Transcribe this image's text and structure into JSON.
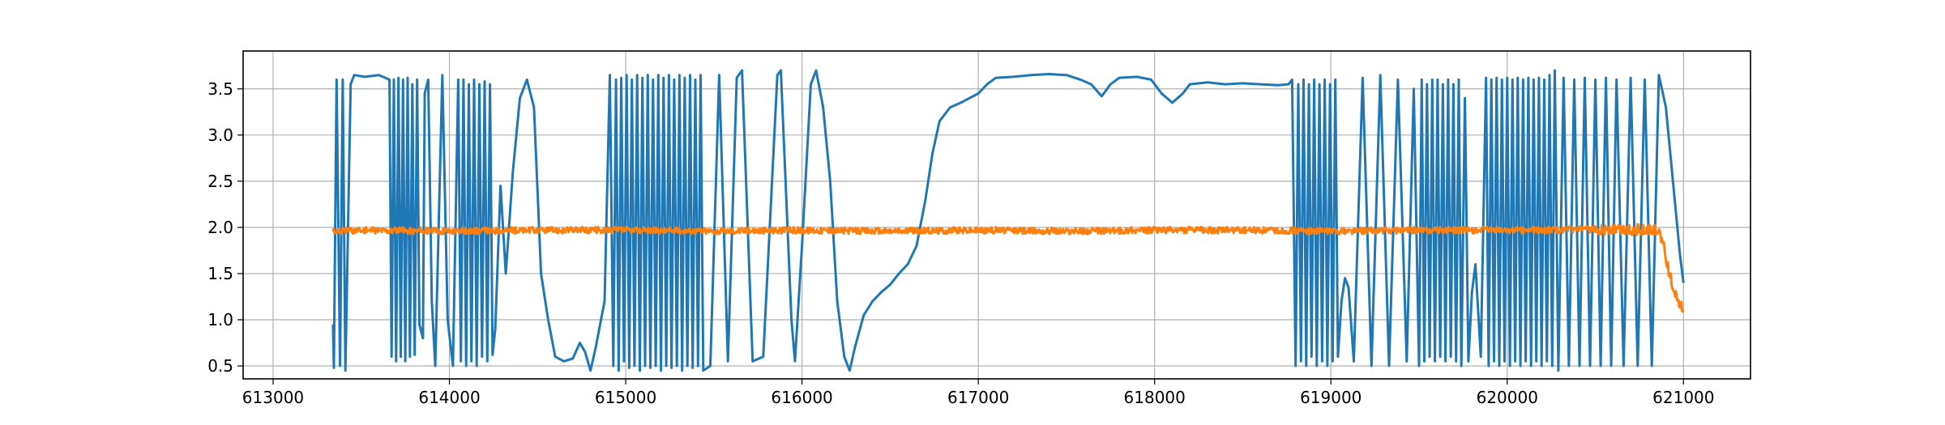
{
  "chart_data": {
    "type": "line",
    "title": "",
    "xlabel": "",
    "ylabel": "",
    "xlim": [
      612830,
      621380
    ],
    "ylim": [
      0.36,
      3.91
    ],
    "grid": true,
    "legend": "none",
    "x_ticks": [
      613000,
      614000,
      615000,
      616000,
      617000,
      618000,
      619000,
      620000,
      621000
    ],
    "x_tick_labels": [
      "613000",
      "614000",
      "615000",
      "616000",
      "617000",
      "618000",
      "619000",
      "620000",
      "621000"
    ],
    "y_ticks": [
      0.5,
      1.0,
      1.5,
      2.0,
      2.5,
      3.0,
      3.5
    ],
    "y_tick_labels": [
      "0.5",
      "1.0",
      "1.5",
      "2.0",
      "2.5",
      "3.0",
      "3.5"
    ],
    "colors": {
      "series_1": "#1f77b4",
      "series_2": "#ff7f0e",
      "grid": "#b0b0b0",
      "axes": "#000000"
    },
    "series": [
      {
        "color": "#1f77b4",
        "points": [
          [
            613340,
            0.95
          ],
          [
            613345,
            0.48
          ],
          [
            613360,
            3.6
          ],
          [
            613380,
            0.5
          ],
          [
            613395,
            3.6
          ],
          [
            613410,
            0.45
          ],
          [
            613440,
            3.55
          ],
          [
            613460,
            3.65
          ],
          [
            613520,
            3.63
          ],
          [
            613600,
            3.65
          ],
          [
            613660,
            3.6
          ],
          [
            613672,
            0.6
          ],
          [
            613685,
            3.6
          ],
          [
            613698,
            0.55
          ],
          [
            613711,
            3.62
          ],
          [
            613724,
            0.6
          ],
          [
            613737,
            3.6
          ],
          [
            613750,
            0.55
          ],
          [
            613763,
            3.62
          ],
          [
            613776,
            0.6
          ],
          [
            613790,
            3.55
          ],
          [
            613803,
            0.62
          ],
          [
            613817,
            3.6
          ],
          [
            613830,
            0.95
          ],
          [
            613850,
            0.8
          ],
          [
            613860,
            3.45
          ],
          [
            613880,
            3.6
          ],
          [
            613900,
            1.2
          ],
          [
            613920,
            0.5
          ],
          [
            613960,
            3.65
          ],
          [
            613990,
            1.0
          ],
          [
            614020,
            0.5
          ],
          [
            614050,
            3.6
          ],
          [
            614065,
            0.55
          ],
          [
            614080,
            3.6
          ],
          [
            614095,
            0.5
          ],
          [
            614110,
            3.55
          ],
          [
            614125,
            0.55
          ],
          [
            614140,
            3.6
          ],
          [
            614155,
            0.5
          ],
          [
            614170,
            3.55
          ],
          [
            614185,
            0.6
          ],
          [
            614200,
            3.58
          ],
          [
            614215,
            0.55
          ],
          [
            614230,
            3.55
          ],
          [
            614245,
            0.62
          ],
          [
            614260,
            0.9
          ],
          [
            614290,
            2.45
          ],
          [
            614320,
            1.5
          ],
          [
            614360,
            2.6
          ],
          [
            614400,
            3.4
          ],
          [
            614440,
            3.6
          ],
          [
            614480,
            3.3
          ],
          [
            614520,
            1.5
          ],
          [
            614560,
            1.0
          ],
          [
            614600,
            0.6
          ],
          [
            614650,
            0.55
          ],
          [
            614700,
            0.58
          ],
          [
            614740,
            0.75
          ],
          [
            614770,
            0.65
          ],
          [
            614800,
            0.45
          ],
          [
            614830,
            0.7
          ],
          [
            614860,
            1.0
          ],
          [
            614880,
            1.2
          ],
          [
            614910,
            3.65
          ],
          [
            614930,
            0.5
          ],
          [
            614945,
            3.6
          ],
          [
            614960,
            0.45
          ],
          [
            614975,
            3.62
          ],
          [
            614990,
            0.55
          ],
          [
            615005,
            3.65
          ],
          [
            615020,
            0.48
          ],
          [
            615035,
            3.6
          ],
          [
            615050,
            0.5
          ],
          [
            615065,
            3.65
          ],
          [
            615080,
            0.45
          ],
          [
            615095,
            3.62
          ],
          [
            615110,
            0.5
          ],
          [
            615125,
            3.65
          ],
          [
            615140,
            0.48
          ],
          [
            615155,
            3.6
          ],
          [
            615170,
            0.5
          ],
          [
            615185,
            3.65
          ],
          [
            615200,
            0.45
          ],
          [
            615215,
            3.62
          ],
          [
            615230,
            0.5
          ],
          [
            615245,
            3.65
          ],
          [
            615260,
            0.48
          ],
          [
            615275,
            3.6
          ],
          [
            615290,
            0.5
          ],
          [
            615305,
            3.65
          ],
          [
            615320,
            0.45
          ],
          [
            615335,
            3.62
          ],
          [
            615350,
            0.5
          ],
          [
            615365,
            3.65
          ],
          [
            615380,
            0.48
          ],
          [
            615395,
            3.6
          ],
          [
            615410,
            0.5
          ],
          [
            615425,
            3.65
          ],
          [
            615440,
            0.45
          ],
          [
            615480,
            0.5
          ],
          [
            615530,
            3.65
          ],
          [
            615580,
            0.55
          ],
          [
            615630,
            3.62
          ],
          [
            615660,
            3.7
          ],
          [
            615720,
            0.55
          ],
          [
            615780,
            0.6
          ],
          [
            615860,
            3.65
          ],
          [
            615880,
            3.7
          ],
          [
            615940,
            1.0
          ],
          [
            615960,
            0.55
          ],
          [
            616000,
            1.8
          ],
          [
            616050,
            3.55
          ],
          [
            616080,
            3.7
          ],
          [
            616120,
            3.3
          ],
          [
            616160,
            2.5
          ],
          [
            616200,
            1.2
          ],
          [
            616240,
            0.6
          ],
          [
            616270,
            0.45
          ],
          [
            616300,
            0.7
          ],
          [
            616350,
            1.05
          ],
          [
            616400,
            1.2
          ],
          [
            616450,
            1.3
          ],
          [
            616500,
            1.38
          ],
          [
            616550,
            1.5
          ],
          [
            616600,
            1.6
          ],
          [
            616650,
            1.8
          ],
          [
            616700,
            2.3
          ],
          [
            616740,
            2.8
          ],
          [
            616780,
            3.15
          ],
          [
            616840,
            3.3
          ],
          [
            616900,
            3.35
          ],
          [
            616950,
            3.4
          ],
          [
            617000,
            3.45
          ],
          [
            617050,
            3.55
          ],
          [
            617100,
            3.62
          ],
          [
            617200,
            3.63
          ],
          [
            617300,
            3.65
          ],
          [
            617400,
            3.66
          ],
          [
            617500,
            3.65
          ],
          [
            617580,
            3.6
          ],
          [
            617640,
            3.55
          ],
          [
            617700,
            3.42
          ],
          [
            617750,
            3.55
          ],
          [
            617800,
            3.62
          ],
          [
            617900,
            3.63
          ],
          [
            617980,
            3.6
          ],
          [
            618040,
            3.45
          ],
          [
            618100,
            3.35
          ],
          [
            618160,
            3.45
          ],
          [
            618200,
            3.55
          ],
          [
            618300,
            3.57
          ],
          [
            618400,
            3.55
          ],
          [
            618500,
            3.56
          ],
          [
            618600,
            3.55
          ],
          [
            618700,
            3.54
          ],
          [
            618760,
            3.55
          ],
          [
            618780,
            3.6
          ],
          [
            618800,
            0.5
          ],
          [
            618815,
            3.55
          ],
          [
            618830,
            0.55
          ],
          [
            618845,
            3.6
          ],
          [
            618860,
            0.5
          ],
          [
            618875,
            3.55
          ],
          [
            618890,
            0.6
          ],
          [
            618905,
            3.6
          ],
          [
            618920,
            0.5
          ],
          [
            618935,
            3.55
          ],
          [
            618950,
            0.55
          ],
          [
            618965,
            3.6
          ],
          [
            618980,
            0.5
          ],
          [
            618995,
            3.55
          ],
          [
            619010,
            0.55
          ],
          [
            619025,
            3.6
          ],
          [
            619040,
            0.6
          ],
          [
            619060,
            1.2
          ],
          [
            619080,
            1.45
          ],
          [
            619100,
            1.35
          ],
          [
            619130,
            0.55
          ],
          [
            619180,
            3.62
          ],
          [
            619230,
            0.5
          ],
          [
            619280,
            3.65
          ],
          [
            619330,
            0.5
          ],
          [
            619380,
            3.6
          ],
          [
            619430,
            0.55
          ],
          [
            619470,
            3.5
          ],
          [
            619500,
            0.5
          ],
          [
            619515,
            3.6
          ],
          [
            619530,
            0.55
          ],
          [
            619545,
            3.55
          ],
          [
            619560,
            0.6
          ],
          [
            619575,
            3.6
          ],
          [
            619590,
            0.55
          ],
          [
            619605,
            3.6
          ],
          [
            619620,
            0.6
          ],
          [
            619635,
            3.55
          ],
          [
            619650,
            0.55
          ],
          [
            619665,
            3.6
          ],
          [
            619680,
            0.6
          ],
          [
            619695,
            3.55
          ],
          [
            619710,
            0.55
          ],
          [
            619725,
            3.6
          ],
          [
            619740,
            0.5
          ],
          [
            619760,
            3.4
          ],
          [
            619780,
            0.55
          ],
          [
            619800,
            1.3
          ],
          [
            619820,
            1.6
          ],
          [
            619850,
            0.6
          ],
          [
            619880,
            3.62
          ],
          [
            619895,
            0.5
          ],
          [
            619910,
            3.6
          ],
          [
            619925,
            0.55
          ],
          [
            619940,
            3.62
          ],
          [
            619955,
            0.5
          ],
          [
            619970,
            3.6
          ],
          [
            619985,
            0.55
          ],
          [
            620000,
            3.62
          ],
          [
            620015,
            0.5
          ],
          [
            620030,
            3.6
          ],
          [
            620045,
            0.55
          ],
          [
            620060,
            3.62
          ],
          [
            620075,
            0.5
          ],
          [
            620090,
            3.6
          ],
          [
            620105,
            0.55
          ],
          [
            620120,
            3.62
          ],
          [
            620135,
            0.5
          ],
          [
            620150,
            3.6
          ],
          [
            620165,
            0.55
          ],
          [
            620180,
            3.62
          ],
          [
            620195,
            0.5
          ],
          [
            620210,
            3.6
          ],
          [
            620225,
            0.55
          ],
          [
            620240,
            3.65
          ],
          [
            620255,
            0.5
          ],
          [
            620270,
            3.7
          ],
          [
            620290,
            0.45
          ],
          [
            620320,
            3.62
          ],
          [
            620350,
            0.5
          ],
          [
            620380,
            3.6
          ],
          [
            620410,
            0.5
          ],
          [
            620440,
            3.62
          ],
          [
            620470,
            0.5
          ],
          [
            620500,
            3.6
          ],
          [
            620530,
            0.5
          ],
          [
            620560,
            3.62
          ],
          [
            620590,
            0.5
          ],
          [
            620620,
            3.6
          ],
          [
            620660,
            0.5
          ],
          [
            620700,
            3.62
          ],
          [
            620740,
            0.5
          ],
          [
            620780,
            3.6
          ],
          [
            620820,
            0.5
          ],
          [
            620860,
            3.65
          ],
          [
            620900,
            3.3
          ],
          [
            620940,
            2.5
          ],
          [
            620980,
            1.7
          ],
          [
            621000,
            1.4
          ]
        ]
      },
      {
        "color": "#ff7f0e",
        "points": [
          [
            613340,
            1.96
          ],
          [
            613500,
            1.97
          ],
          [
            614000,
            1.96
          ],
          [
            614500,
            1.97
          ],
          [
            615000,
            1.97
          ],
          [
            615500,
            1.96
          ],
          [
            616000,
            1.97
          ],
          [
            616500,
            1.96
          ],
          [
            617000,
            1.97
          ],
          [
            617500,
            1.96
          ],
          [
            618000,
            1.97
          ],
          [
            618500,
            1.97
          ],
          [
            619000,
            1.96
          ],
          [
            619500,
            1.97
          ],
          [
            620000,
            1.97
          ],
          [
            620300,
            1.97
          ],
          [
            620500,
            1.98
          ],
          [
            620700,
            1.98
          ],
          [
            620850,
            1.97
          ],
          [
            620880,
            1.85
          ],
          [
            620920,
            1.5
          ],
          [
            620960,
            1.25
          ],
          [
            621000,
            1.1
          ]
        ],
        "noise_amplitude": 0.035
      }
    ]
  }
}
